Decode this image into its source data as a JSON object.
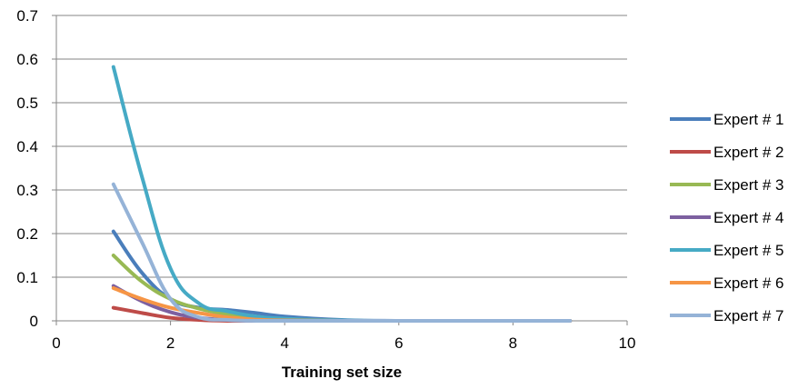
{
  "chart_data": {
    "type": "line",
    "title": "",
    "xlabel": "Training set size",
    "ylabel": "",
    "xlim": [
      0,
      10
    ],
    "ylim": [
      0,
      0.7
    ],
    "xticks": [
      "0",
      "2",
      "4",
      "6",
      "8",
      "10"
    ],
    "yticks": [
      "0",
      "0.1",
      "0.2",
      "0.3",
      "0.4",
      "0.5",
      "0.6",
      "0.7"
    ],
    "grid": "horizontal",
    "legend_position": "right",
    "x": [
      1,
      1.5,
      2,
      2.5,
      3,
      3.5,
      4,
      5,
      6,
      7,
      8,
      9
    ],
    "series": [
      {
        "name": "Expert # 1",
        "color": "#4A7EBB",
        "values": [
          0.205,
          0.11,
          0.05,
          0.03,
          0.025,
          0.018,
          0.01,
          0.002,
          0.0,
          0.0,
          0.0,
          0.0
        ]
      },
      {
        "name": "Expert # 2",
        "color": "#BE4B48",
        "values": [
          0.03,
          0.018,
          0.007,
          0.002,
          0.0,
          0.0,
          0.0,
          0.0,
          0.0,
          0.0,
          0.0,
          0.0
        ]
      },
      {
        "name": "Expert # 3",
        "color": "#98B954",
        "values": [
          0.15,
          0.09,
          0.05,
          0.028,
          0.015,
          0.006,
          0.002,
          0.0,
          0.0,
          0.0,
          0.0,
          0.0
        ]
      },
      {
        "name": "Expert # 4",
        "color": "#7D60A0",
        "values": [
          0.08,
          0.045,
          0.02,
          0.007,
          0.002,
          0.0,
          0.0,
          0.0,
          0.0,
          0.0,
          0.0,
          0.0
        ]
      },
      {
        "name": "Expert # 5",
        "color": "#46AAC5",
        "values": [
          0.582,
          0.33,
          0.12,
          0.04,
          0.022,
          0.01,
          0.005,
          0.001,
          0.0,
          0.0,
          0.0,
          0.0
        ]
      },
      {
        "name": "Expert # 6",
        "color": "#F69545",
        "values": [
          0.075,
          0.05,
          0.03,
          0.018,
          0.008,
          0.003,
          0.001,
          0.0,
          0.0,
          0.0,
          0.0,
          0.0
        ]
      },
      {
        "name": "Expert # 7",
        "color": "#95B3D7",
        "values": [
          0.313,
          0.18,
          0.05,
          0.008,
          0.002,
          0.0,
          0.0,
          0.0,
          0.0,
          0.0,
          0.0,
          0.0
        ]
      }
    ]
  }
}
